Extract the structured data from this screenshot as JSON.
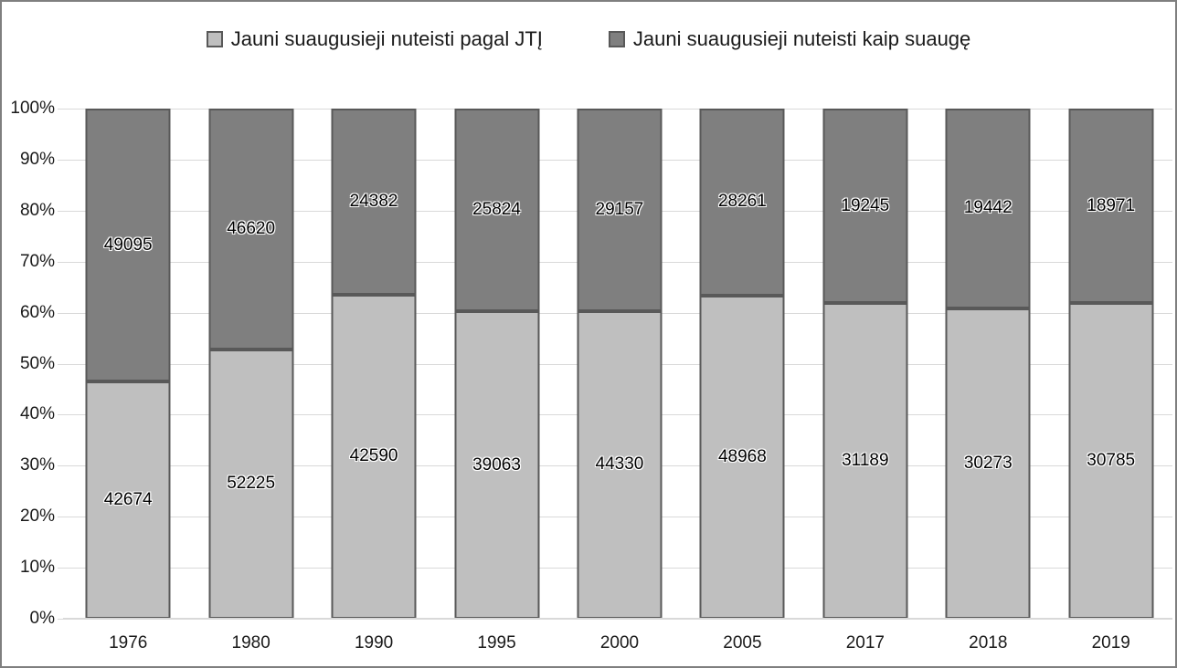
{
  "chart_data": {
    "type": "bar",
    "subtype": "100-percent-stacked-column",
    "title": "",
    "categories": [
      "1976",
      "1980",
      "1990",
      "1995",
      "2000",
      "2005",
      "2017",
      "2018",
      "2019"
    ],
    "series": [
      {
        "name": "Jauni suaugusieji nuteisti pagal JTĮ",
        "color": "#bfbfbf",
        "border_color": "#595959",
        "stack_position": "bottom",
        "values": [
          42674,
          52225,
          42590,
          39063,
          44330,
          48968,
          31189,
          30273,
          30785
        ]
      },
      {
        "name": "Jauni suaugusieji nuteisti kaip suaugę",
        "color": "#7f7f7f",
        "border_color": "#595959",
        "stack_position": "top",
        "values": [
          49095,
          46620,
          24382,
          25824,
          29157,
          28261,
          19245,
          19442,
          18971
        ]
      }
    ],
    "data_labels_visible": true,
    "y_axis": {
      "min": 0,
      "max": 100,
      "unit": "%",
      "tick_step": 10,
      "tick_labels": [
        "0%",
        "10%",
        "20%",
        "30%",
        "40%",
        "50%",
        "60%",
        "70%",
        "80%",
        "90%",
        "100%"
      ]
    },
    "x_axis": {
      "label": ""
    },
    "legend_position": "top",
    "grid": true,
    "colors": {
      "gridline": "#d9d9d9",
      "axis_line": "#d9d9d9",
      "text": "#1a1a1a",
      "background": "#ffffff",
      "frame_border": "#7f7f7f"
    }
  }
}
